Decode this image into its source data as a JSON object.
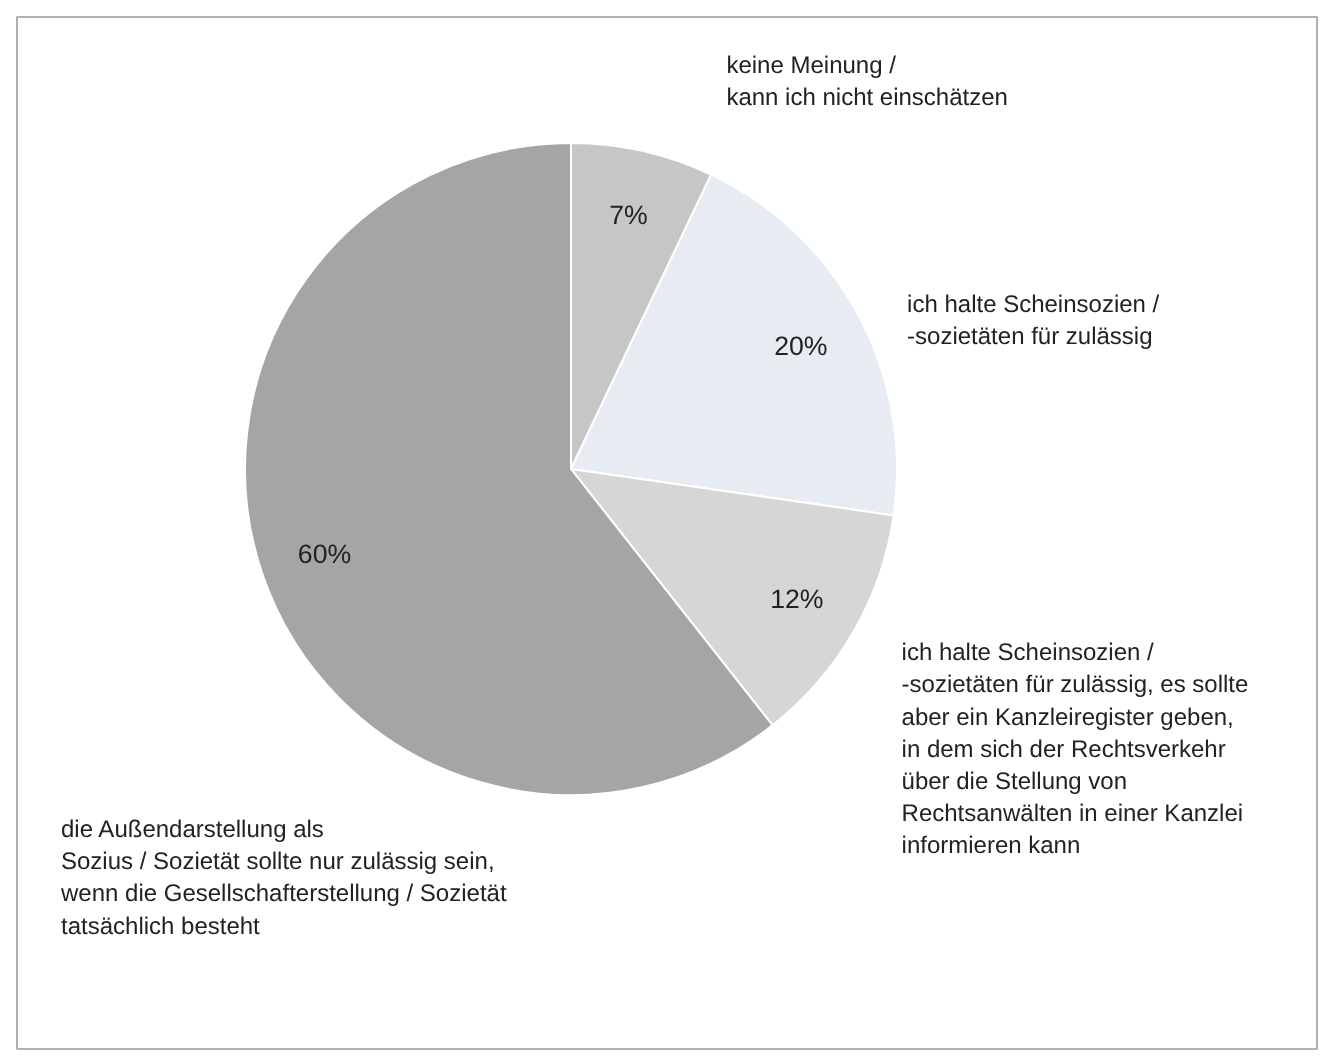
{
  "chart_data": {
    "type": "pie",
    "categories": [
      "keine Meinung /\nkann ich nicht einschätzen",
      "ich halte Scheinsozien /\n-sozietäten für zulässig",
      "ich halte Scheinsozien /\n-sozietäten für zulässig, es sollte\naber ein Kanzleiregister geben,\nin dem sich der Rechtsverkehr\nüber die Stellung von\nRechtsanwälten in einer Kanzlei\ninformieren kann",
      "die Außendarstellung als\nSozius / Sozietät sollte nur zulässig sein,\nwenn die Gesellschafterstellung / Sozietät\ntatsächlich besteht"
    ],
    "values": [
      7,
      20,
      12,
      60
    ],
    "value_labels": [
      "7%",
      "20%",
      "12%",
      "60%"
    ],
    "colors": [
      "#c6c6c6",
      "#e7ebf2",
      "#d6d6d6",
      "#a5a5a5"
    ]
  }
}
